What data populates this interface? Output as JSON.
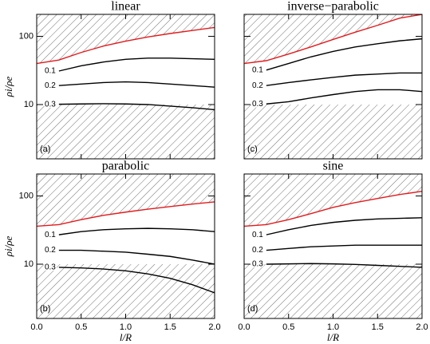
{
  "chart_data": [
    {
      "type": "line",
      "title": "linear",
      "panel_label": "(a)",
      "ylabel": "ρi/ρe",
      "yscale": "log",
      "x": [
        0,
        0.25,
        0.5,
        0.75,
        1.0,
        1.25,
        1.5,
        1.75,
        2.0
      ],
      "xlim": [
        0,
        2
      ],
      "xticks": [
        0,
        0.5,
        1,
        1.5,
        2
      ],
      "ylim": [
        1.6,
        210
      ],
      "yticks": [
        10,
        100
      ],
      "shade_below": 10,
      "series": [
        {
          "color": "#e41a1c",
          "values": [
            40,
            45,
            58,
            72,
            85,
            98,
            110,
            122,
            135
          ]
        },
        {
          "name": "0.1",
          "color": "#000000",
          "values": [
            null,
            31,
            37,
            42,
            46,
            48,
            48,
            47,
            46
          ]
        },
        {
          "name": "0.2",
          "color": "#000000",
          "values": [
            null,
            19,
            20,
            21,
            21.5,
            21,
            20,
            19,
            18
          ]
        },
        {
          "name": "0.3",
          "color": "#000000",
          "values": [
            null,
            10.1,
            10.2,
            10.3,
            10.2,
            10,
            9.5,
            9,
            8.4
          ]
        }
      ]
    },
    {
      "type": "line",
      "title": "inverse−parabolic",
      "panel_label": "(c)",
      "yscale": "log",
      "x": [
        0,
        0.25,
        0.5,
        0.75,
        1.0,
        1.25,
        1.5,
        1.75,
        2.0
      ],
      "xlim": [
        0,
        2
      ],
      "xticks": [
        0,
        0.5,
        1,
        1.5,
        2
      ],
      "ylim": [
        1.6,
        210
      ],
      "yticks": [
        10,
        100
      ],
      "shade_below": 10,
      "series": [
        {
          "color": "#e41a1c",
          "values": [
            40,
            44,
            55,
            70,
            90,
            115,
            145,
            185,
            210
          ]
        },
        {
          "name": "0.1",
          "color": "#000000",
          "values": [
            null,
            32,
            40,
            50,
            60,
            70,
            78,
            86,
            92
          ]
        },
        {
          "name": "0.2",
          "color": "#000000",
          "values": [
            null,
            19,
            21,
            23,
            25,
            27,
            28,
            29,
            29
          ]
        },
        {
          "name": "0.3",
          "color": "#000000",
          "values": [
            null,
            10.2,
            11,
            12.5,
            14,
            15.5,
            16.5,
            16.5,
            15.5
          ]
        }
      ]
    },
    {
      "type": "line",
      "title": "parabolic",
      "panel_label": "(b)",
      "ylabel": "ρi/ρe",
      "xlabel": "l/R",
      "yscale": "log",
      "x": [
        0,
        0.25,
        0.5,
        0.75,
        1.0,
        1.25,
        1.5,
        1.75,
        2.0
      ],
      "xlim": [
        0,
        2
      ],
      "xticks": [
        {
          "value": 0,
          "label": "0.0"
        },
        {
          "value": 0.5,
          "label": "0.5"
        },
        {
          "value": 1,
          "label": "1.0"
        },
        {
          "value": 1.5,
          "label": "1.5"
        },
        {
          "value": 2,
          "label": "2.0"
        }
      ],
      "ylim": [
        1.6,
        210
      ],
      "yticks": [
        10,
        100
      ],
      "shade_below": 10,
      "series": [
        {
          "color": "#e41a1c",
          "values": [
            36,
            38,
            45,
            52,
            58,
            64,
            70,
            76,
            82
          ]
        },
        {
          "name": "0.1",
          "color": "#000000",
          "values": [
            null,
            27,
            30,
            32,
            33,
            33.5,
            33,
            32,
            30
          ]
        },
        {
          "name": "0.2",
          "color": "#000000",
          "values": [
            null,
            16,
            16,
            15.5,
            15,
            14,
            13,
            11.5,
            10
          ]
        },
        {
          "name": "0.3",
          "color": "#000000",
          "values": [
            null,
            9,
            8.8,
            8.5,
            8,
            7.2,
            6.2,
            5,
            3.8
          ]
        }
      ]
    },
    {
      "type": "line",
      "title": "sine",
      "panel_label": "(d)",
      "xlabel": "l/R",
      "yscale": "log",
      "x": [
        0,
        0.25,
        0.5,
        0.75,
        1.0,
        1.25,
        1.5,
        1.75,
        2.0
      ],
      "xlim": [
        0,
        2
      ],
      "xticks": [
        {
          "value": 0,
          "label": "0.0"
        },
        {
          "value": 0.5,
          "label": "0.5"
        },
        {
          "value": 1,
          "label": "1.0"
        },
        {
          "value": 1.5,
          "label": "1.5"
        },
        {
          "value": 2,
          "label": "2.0"
        }
      ],
      "ylim": [
        1.6,
        210
      ],
      "yticks": [
        10,
        100
      ],
      "shade_below": 10,
      "series": [
        {
          "color": "#e41a1c",
          "values": [
            36,
            38,
            45,
            55,
            68,
            80,
            92,
            105,
            117
          ]
        },
        {
          "name": "0.1",
          "color": "#000000",
          "values": [
            null,
            27,
            32,
            37,
            41,
            44,
            46,
            47,
            48
          ]
        },
        {
          "name": "0.2",
          "color": "#000000",
          "values": [
            null,
            16,
            17,
            18,
            18.5,
            19,
            19,
            19,
            19
          ]
        },
        {
          "name": "0.3",
          "color": "#000000",
          "values": [
            null,
            10,
            10.1,
            10.2,
            10.1,
            9.9,
            9.6,
            9.3,
            9
          ]
        }
      ]
    }
  ]
}
